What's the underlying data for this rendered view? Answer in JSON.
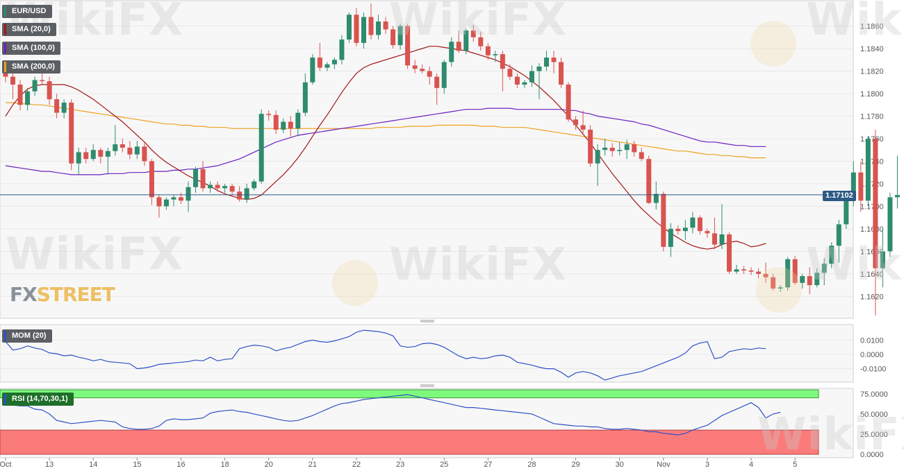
{
  "chart_data": {
    "type": "candlestick",
    "symbol": "EUR/USD",
    "last_price": "1.17102",
    "price_ylim": [
      1.1603,
      1.188
    ],
    "price_ticks": [
      "1.1620",
      "1.1640",
      "1.1660",
      "1.1680",
      "1.1700",
      "1.1720",
      "1.1740",
      "1.1760",
      "1.1780",
      "1.1800",
      "1.1820",
      "1.1840",
      "1.1860"
    ],
    "x_tick_labels": [
      {
        "label": "Oct",
        "i": 0
      },
      {
        "label": "13",
        "i": 6
      },
      {
        "label": "14",
        "i": 12
      },
      {
        "label": "15",
        "i": 18
      },
      {
        "label": "16",
        "i": 24
      },
      {
        "label": "18",
        "i": 30
      },
      {
        "label": "20",
        "i": 36
      },
      {
        "label": "21",
        "i": 42
      },
      {
        "label": "22",
        "i": 48
      },
      {
        "label": "23",
        "i": 54
      },
      {
        "label": "25",
        "i": 60
      },
      {
        "label": "27",
        "i": 66
      },
      {
        "label": "28",
        "i": 72
      },
      {
        "label": "29",
        "i": 78
      },
      {
        "label": "30",
        "i": 84
      },
      {
        "label": "Nov",
        "i": 90
      },
      {
        "label": "3",
        "i": 96
      },
      {
        "label": "4",
        "i": 102
      },
      {
        "label": "5",
        "i": 108
      }
    ],
    "candles": [
      [
        1.1818,
        1.1825,
        1.181,
        1.1815
      ],
      [
        1.1815,
        1.182,
        1.1795,
        1.1808
      ],
      [
        1.1808,
        1.1812,
        1.1785,
        1.179
      ],
      [
        1.179,
        1.1805,
        1.1785,
        1.1802
      ],
      [
        1.1802,
        1.1815,
        1.1798,
        1.1812
      ],
      [
        1.1812,
        1.1818,
        1.1808,
        1.1811
      ],
      [
        1.1811,
        1.1815,
        1.179,
        1.1795
      ],
      [
        1.1795,
        1.18,
        1.1778,
        1.1783
      ],
      [
        1.1783,
        1.1795,
        1.1778,
        1.1792
      ],
      [
        1.1792,
        1.1795,
        1.1732,
        1.1738
      ],
      [
        1.1738,
        1.1752,
        1.1728,
        1.1748
      ],
      [
        1.1748,
        1.1752,
        1.1738,
        1.1742
      ],
      [
        1.1742,
        1.1755,
        1.174,
        1.175
      ],
      [
        1.175,
        1.1752,
        1.1738,
        1.1744
      ],
      [
        1.1744,
        1.1752,
        1.1728,
        1.1749
      ],
      [
        1.1749,
        1.1772,
        1.1745,
        1.1755
      ],
      [
        1.1755,
        1.176,
        1.1748,
        1.1752
      ],
      [
        1.1752,
        1.1758,
        1.1742,
        1.1746
      ],
      [
        1.1746,
        1.1758,
        1.1742,
        1.1753
      ],
      [
        1.1753,
        1.1756,
        1.1736,
        1.174
      ],
      [
        1.174,
        1.1742,
        1.1701,
        1.1708
      ],
      [
        1.1708,
        1.171,
        1.169,
        1.17
      ],
      [
        1.17,
        1.1708,
        1.1697,
        1.1706
      ],
      [
        1.1706,
        1.171,
        1.17,
        1.1708
      ],
      [
        1.1708,
        1.1712,
        1.1702,
        1.1705
      ],
      [
        1.1705,
        1.1722,
        1.1695,
        1.1717
      ],
      [
        1.1717,
        1.1735,
        1.1712,
        1.1733
      ],
      [
        1.1733,
        1.174,
        1.1713,
        1.1716
      ],
      [
        1.1716,
        1.1722,
        1.1712,
        1.1719
      ],
      [
        1.1719,
        1.1722,
        1.1713,
        1.1716
      ],
      [
        1.1716,
        1.172,
        1.1712,
        1.1718
      ],
      [
        1.1718,
        1.172,
        1.171,
        1.1713
      ],
      [
        1.1713,
        1.1718,
        1.1704,
        1.1706
      ],
      [
        1.1706,
        1.172,
        1.1703,
        1.1716
      ],
      [
        1.1716,
        1.1724,
        1.1714,
        1.1722
      ],
      [
        1.1722,
        1.1786,
        1.172,
        1.1782
      ],
      [
        1.1782,
        1.1785,
        1.1776,
        1.1781
      ],
      [
        1.1781,
        1.1785,
        1.1764,
        1.1768
      ],
      [
        1.1768,
        1.1778,
        1.1765,
        1.1775
      ],
      [
        1.1775,
        1.178,
        1.1762,
        1.1769
      ],
      [
        1.1769,
        1.1786,
        1.1762,
        1.1783
      ],
      [
        1.1783,
        1.1818,
        1.178,
        1.181
      ],
      [
        1.181,
        1.1835,
        1.1808,
        1.1832
      ],
      [
        1.1832,
        1.1845,
        1.182,
        1.1823
      ],
      [
        1.1823,
        1.1828,
        1.182,
        1.1826
      ],
      [
        1.1826,
        1.1832,
        1.1822,
        1.183
      ],
      [
        1.183,
        1.1852,
        1.1826,
        1.1848
      ],
      [
        1.1848,
        1.1872,
        1.1845,
        1.187
      ],
      [
        1.187,
        1.1876,
        1.1842,
        1.1845
      ],
      [
        1.1845,
        1.1872,
        1.184,
        1.1868
      ],
      [
        1.1868,
        1.188,
        1.1848,
        1.1852
      ],
      [
        1.1852,
        1.187,
        1.1848,
        1.1864
      ],
      [
        1.1864,
        1.1868,
        1.1853,
        1.1857
      ],
      [
        1.1857,
        1.186,
        1.184,
        1.1843
      ],
      [
        1.1843,
        1.1862,
        1.1839,
        1.186
      ],
      [
        1.186,
        1.1862,
        1.1822,
        1.1825
      ],
      [
        1.1825,
        1.183,
        1.1818,
        1.1822
      ],
      [
        1.1822,
        1.1826,
        1.1818,
        1.182
      ],
      [
        1.182,
        1.1824,
        1.1808,
        1.1815
      ],
      [
        1.1815,
        1.1818,
        1.179,
        1.1805
      ],
      [
        1.1805,
        1.183,
        1.18,
        1.1828
      ],
      [
        1.1828,
        1.185,
        1.1824,
        1.1846
      ],
      [
        1.1846,
        1.1856,
        1.1836,
        1.1838
      ],
      [
        1.1838,
        1.1858,
        1.1835,
        1.1856
      ],
      [
        1.1856,
        1.1861,
        1.1846,
        1.185
      ],
      [
        1.185,
        1.1855,
        1.1838,
        1.1842
      ],
      [
        1.1842,
        1.1845,
        1.183,
        1.1834
      ],
      [
        1.1834,
        1.1838,
        1.1828,
        1.1835
      ],
      [
        1.1835,
        1.1838,
        1.1802,
        1.1822
      ],
      [
        1.1822,
        1.1826,
        1.1812,
        1.1815
      ],
      [
        1.1815,
        1.1818,
        1.1805,
        1.1808
      ],
      [
        1.1808,
        1.1812,
        1.1805,
        1.181
      ],
      [
        1.181,
        1.1825,
        1.1806,
        1.182
      ],
      [
        1.182,
        1.1827,
        1.1795,
        1.1824
      ],
      [
        1.1824,
        1.1838,
        1.182,
        1.1832
      ],
      [
        1.1832,
        1.1838,
        1.1818,
        1.1828
      ],
      [
        1.1828,
        1.1832,
        1.1805,
        1.1808
      ],
      [
        1.1808,
        1.181,
        1.1775,
        1.1777
      ],
      [
        1.1777,
        1.178,
        1.1768,
        1.1772
      ],
      [
        1.1772,
        1.1785,
        1.1765,
        1.1768
      ],
      [
        1.1768,
        1.1772,
        1.1735,
        1.1738
      ],
      [
        1.1738,
        1.1755,
        1.1718,
        1.175
      ],
      [
        1.175,
        1.176,
        1.1745,
        1.1752
      ],
      [
        1.1752,
        1.1756,
        1.1744,
        1.1749
      ],
      [
        1.1749,
        1.1757,
        1.1745,
        1.175
      ],
      [
        1.175,
        1.1759,
        1.1742,
        1.1755
      ],
      [
        1.1755,
        1.1758,
        1.1744,
        1.1748
      ],
      [
        1.1748,
        1.1752,
        1.174,
        1.1742
      ],
      [
        1.1742,
        1.1745,
        1.1702,
        1.1703
      ],
      [
        1.1703,
        1.1722,
        1.1697,
        1.1711
      ],
      [
        1.1711,
        1.1713,
        1.166,
        1.1664
      ],
      [
        1.1664,
        1.1685,
        1.1655,
        1.168
      ],
      [
        1.168,
        1.1683,
        1.1675,
        1.1678
      ],
      [
        1.1678,
        1.1688,
        1.167,
        1.1681
      ],
      [
        1.1681,
        1.1695,
        1.1676,
        1.169
      ],
      [
        1.169,
        1.1692,
        1.1675,
        1.1678
      ],
      [
        1.1678,
        1.168,
        1.1672,
        1.1676
      ],
      [
        1.1676,
        1.169,
        1.1662,
        1.1666
      ],
      [
        1.1666,
        1.1702,
        1.1662,
        1.1675
      ],
      [
        1.1675,
        1.1677,
        1.164,
        1.1642
      ],
      [
        1.1642,
        1.1648,
        1.164,
        1.1644
      ],
      [
        1.1644,
        1.1647,
        1.164,
        1.1643
      ],
      [
        1.1643,
        1.1646,
        1.1639,
        1.1642
      ],
      [
        1.1642,
        1.1645,
        1.1636,
        1.164
      ],
      [
        1.164,
        1.165,
        1.1632,
        1.1637
      ],
      [
        1.1637,
        1.164,
        1.1625,
        1.1627
      ],
      [
        1.1627,
        1.163,
        1.1624,
        1.1628
      ],
      [
        1.1628,
        1.1655,
        1.1625,
        1.1653
      ]
    ],
    "candles_tail": [
      [
        1.1653,
        1.1656,
        1.163,
        1.1632
      ],
      [
        1.1632,
        1.164,
        1.1627,
        1.1638
      ],
      [
        1.1638,
        1.1646,
        1.1622,
        1.163
      ],
      [
        1.163,
        1.1645,
        1.1628,
        1.1641
      ],
      [
        1.1641,
        1.1654,
        1.163,
        1.1649
      ],
      [
        1.1649,
        1.1668,
        1.1645,
        1.1665
      ],
      [
        1.1665,
        1.1688,
        1.165,
        1.1684
      ],
      [
        1.1684,
        1.171,
        1.168,
        1.1706
      ],
      [
        1.1706,
        1.174,
        1.17,
        1.173
      ],
      [
        1.173,
        1.174,
        1.1695,
        1.1705
      ],
      [
        1.1705,
        1.1762,
        1.17,
        1.176
      ],
      [
        1.176,
        1.1768,
        1.1603,
        1.1645
      ],
      [
        1.1645,
        1.168,
        1.1628,
        1.166
      ],
      [
        1.166,
        1.1712,
        1.1655,
        1.1708
      ],
      [
        1.1708,
        1.1745,
        1.1698,
        1.171
      ]
    ],
    "sma_20": [
      1.178,
      1.179,
      1.1798,
      1.1804,
      1.1807,
      1.1808,
      1.1808,
      1.1808,
      1.1808,
      1.1806,
      1.1803,
      1.1799,
      1.1795,
      1.179,
      1.1785,
      1.178,
      1.1775,
      1.1769,
      1.1763,
      1.1757,
      1.175,
      1.1744,
      1.1739,
      1.1735,
      1.1731,
      1.1727,
      1.1724,
      1.1721,
      1.1718,
      1.1714,
      1.1711,
      1.1709,
      1.1707,
      1.1706,
      1.1707,
      1.171,
      1.1716,
      1.1722,
      1.1728,
      1.1735,
      1.1743,
      1.1752,
      1.1762,
      1.1772,
      1.1781,
      1.1791,
      1.1801,
      1.181,
      1.1818,
      1.1823,
      1.1826,
      1.1828,
      1.183,
      1.1832,
      1.1834,
      1.1836,
      1.1838,
      1.184,
      1.1842,
      1.1842,
      1.1841,
      1.184,
      1.1839,
      1.1838,
      1.1836,
      1.1834,
      1.1832,
      1.183,
      1.1827,
      1.1824,
      1.182,
      1.1816,
      1.1811,
      1.1806,
      1.18,
      1.1794,
      1.1787,
      1.178,
      1.1772,
      1.1764,
      1.1756,
      1.1747,
      1.1738,
      1.1729,
      1.1721,
      1.1713,
      1.1705,
      1.1698,
      1.1692,
      1.1686,
      1.1681,
      1.1676,
      1.1672,
      1.1668,
      1.1665,
      1.1663,
      1.1662,
      1.1663,
      1.1666,
      1.1668,
      1.1669,
      1.1667,
      1.1664,
      1.1665,
      1.1667
    ],
    "sma_100": [
      1.1736,
      1.1735,
      1.1734,
      1.1733,
      1.1732,
      1.1731,
      1.1731,
      1.173,
      1.1729,
      1.1728,
      1.1728,
      1.1728,
      1.1728,
      1.1728,
      1.1729,
      1.1729,
      1.1729,
      1.173,
      1.173,
      1.173,
      1.1731,
      1.1731,
      1.1731,
      1.1732,
      1.1732,
      1.1733,
      1.1733,
      1.1734,
      1.1735,
      1.1736,
      1.1738,
      1.174,
      1.1742,
      1.1745,
      1.1748,
      1.1751,
      1.1754,
      1.1757,
      1.1759,
      1.1761,
      1.1763,
      1.1764,
      1.1765,
      1.1766,
      1.1767,
      1.1768,
      1.1769,
      1.177,
      1.1771,
      1.1772,
      1.1773,
      1.1774,
      1.1775,
      1.1776,
      1.1777,
      1.1778,
      1.1779,
      1.178,
      1.1781,
      1.1782,
      1.1783,
      1.1784,
      1.1785,
      1.1786,
      1.1786,
      1.1786,
      1.1787,
      1.1787,
      1.1787,
      1.1787,
      1.1786,
      1.1786,
      1.1786,
      1.1786,
      1.1786,
      1.1786,
      1.1786,
      1.1785,
      1.1785,
      1.1783,
      1.1782,
      1.178,
      1.1779,
      1.1778,
      1.1777,
      1.1776,
      1.1775,
      1.1773,
      1.1772,
      1.177,
      1.1768,
      1.1766,
      1.1764,
      1.1762,
      1.176,
      1.1758,
      1.1757,
      1.1757,
      1.1756,
      1.1755,
      1.1754,
      1.1754,
      1.1753,
      1.1753,
      1.1753
    ],
    "sma_200": [
      1.1792,
      1.1792,
      1.1791,
      1.1791,
      1.179,
      1.179,
      1.1789,
      1.1788,
      1.1787,
      1.1786,
      1.1785,
      1.1784,
      1.1783,
      1.1782,
      1.1781,
      1.178,
      1.1779,
      1.1778,
      1.1777,
      1.1776,
      1.1775,
      1.1774,
      1.1773,
      1.1773,
      1.1772,
      1.1772,
      1.1771,
      1.1771,
      1.177,
      1.177,
      1.177,
      1.1769,
      1.1769,
      1.1769,
      1.1769,
      1.1769,
      1.1769,
      1.1769,
      1.1769,
      1.1769,
      1.1769,
      1.1769,
      1.1769,
      1.1769,
      1.1769,
      1.1769,
      1.1769,
      1.1769,
      1.1769,
      1.1769,
      1.1769,
      1.177,
      1.177,
      1.177,
      1.177,
      1.1771,
      1.1771,
      1.1771,
      1.1771,
      1.1772,
      1.1772,
      1.1772,
      1.1772,
      1.1772,
      1.1772,
      1.1771,
      1.1771,
      1.1771,
      1.177,
      1.177,
      1.177,
      1.177,
      1.1769,
      1.1768,
      1.1767,
      1.1766,
      1.1765,
      1.1764,
      1.1763,
      1.1762,
      1.1761,
      1.176,
      1.1759,
      1.1758,
      1.1757,
      1.1756,
      1.1755,
      1.1754,
      1.1753,
      1.1752,
      1.1751,
      1.175,
      1.1749,
      1.1749,
      1.1748,
      1.1747,
      1.1746,
      1.1746,
      1.1745,
      1.1745,
      1.1744,
      1.1744,
      1.1743,
      1.1743,
      1.1743
    ],
    "mom_20": [
      0.009,
      0.003,
      0.004,
      0.006,
      0.0045,
      0.0035,
      0.001,
      0.0005,
      -0.001,
      -0.0005,
      -0.002,
      -0.003,
      -0.0045,
      -0.0035,
      -0.005,
      -0.0055,
      -0.006,
      -0.0065,
      -0.01,
      -0.0095,
      -0.0085,
      -0.007,
      -0.0065,
      -0.006,
      -0.0055,
      -0.005,
      -0.004,
      -0.0045,
      -0.002,
      -0.0045,
      -0.0035,
      -0.003,
      0.004,
      0.0055,
      0.0065,
      0.006,
      0.005,
      0.0025,
      0.004,
      0.005,
      0.007,
      0.009,
      0.01,
      0.009,
      0.0085,
      0.0095,
      0.011,
      0.0125,
      0.0155,
      0.017,
      0.0165,
      0.016,
      0.015,
      0.013,
      0.006,
      0.005,
      0.0055,
      0.0075,
      0.008,
      0.007,
      0.005,
      0.002,
      -0.001,
      -0.003,
      -0.002,
      -0.003,
      -0.0025,
      -0.001,
      -0.0005,
      -0.002,
      -0.0055,
      -0.0065,
      -0.0075,
      -0.009,
      -0.01,
      -0.01,
      -0.0125,
      -0.016,
      -0.013,
      -0.012,
      -0.013,
      -0.015,
      -0.018,
      -0.0165,
      -0.015,
      -0.014,
      -0.013,
      -0.012,
      -0.01,
      -0.008,
      -0.006,
      -0.004,
      -0.002,
      0.001,
      0.006,
      0.008,
      0.009,
      -0.003,
      -0.002,
      0.002,
      0.003,
      0.004,
      0.0035,
      0.0045,
      0.004
    ],
    "rsi": [
      62,
      61,
      60,
      60,
      56,
      55,
      50,
      42,
      40,
      38,
      39,
      40,
      41,
      42,
      41,
      40,
      34,
      32,
      31,
      31,
      32,
      35,
      42,
      44,
      43,
      43,
      44,
      45,
      51,
      53,
      54,
      55,
      53,
      52,
      50,
      48,
      46,
      44,
      42,
      41,
      42,
      45,
      48,
      52,
      56,
      60,
      63,
      64,
      66,
      68,
      69,
      70,
      71,
      72,
      73,
      74,
      72,
      70,
      68,
      66,
      64,
      62,
      60,
      58,
      58,
      57,
      56,
      55,
      54,
      53,
      52,
      51,
      50,
      46,
      42,
      38,
      37,
      36,
      35,
      35,
      34,
      34,
      32,
      31,
      31,
      32,
      31,
      30,
      28,
      28,
      26,
      25,
      24,
      26,
      30,
      33,
      36,
      42,
      48,
      52,
      56,
      60,
      64,
      58,
      45,
      50,
      52
    ],
    "mom_ticks": [
      "0.0100",
      "0.0000",
      "-0.0100"
    ],
    "rsi_ticks": [
      "75.0000",
      "50.0000",
      "25.0000",
      "0.0000"
    ],
    "rsi_overbought": 70,
    "rsi_oversold": 30
  },
  "legend": {
    "pair": "EUR/USD",
    "sma20": "SMA (20,0)",
    "sma100": "SMA (100,0)",
    "sma200": "SMA (200,0)",
    "mom": "MOM (20)",
    "rsi": "RSI (14,70,30,1)"
  },
  "watermark": {
    "text": "WikiFX"
  },
  "brand": {
    "part1": "FX",
    "part2": "STREET"
  },
  "colors": {
    "bull": "#2e8b6e",
    "bear": "#d9534f",
    "sma20": "#a31515",
    "sma100": "#6a1fbf",
    "sma200": "#f0a020",
    "indicator": "#2e51c6",
    "rsi_high": "#7dfa7d",
    "rsi_low": "#fb7b7b",
    "last_price_line": "#2c5a84"
  }
}
